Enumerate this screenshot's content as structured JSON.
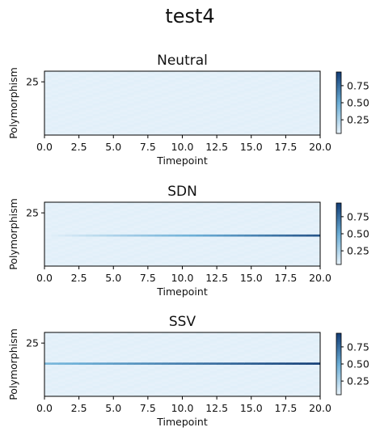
{
  "figure": {
    "suptitle": "test4"
  },
  "colormap": {
    "name": "Blues",
    "low": "#f7fbff",
    "mid": "#6baed6",
    "high": "#08306b"
  },
  "chart_data": [
    {
      "type": "heatmap",
      "title": "Neutral",
      "xlabel": "Timepoint",
      "ylabel": "Polymorphism",
      "xlim": [
        0,
        20
      ],
      "ylim": [
        0,
        30
      ],
      "x_ticks": [
        "0.0",
        "2.5",
        "5.0",
        "7.5",
        "10.0",
        "12.5",
        "15.0",
        "17.5",
        "20.0"
      ],
      "y_ticks": [
        "25"
      ],
      "colorbar": {
        "ticks": [
          "0.25",
          "0.50",
          "0.75"
        ],
        "range": [
          0.05,
          0.95
        ]
      },
      "background_value": 0.07,
      "highlight": null
    },
    {
      "type": "heatmap",
      "title": "SDN",
      "xlabel": "Timepoint",
      "ylabel": "Polymorphism",
      "xlim": [
        0,
        20
      ],
      "ylim": [
        0,
        30
      ],
      "x_ticks": [
        "0.0",
        "2.5",
        "5.0",
        "7.5",
        "10.0",
        "12.5",
        "15.0",
        "17.5",
        "20.0"
      ],
      "y_ticks": [
        "25"
      ],
      "colorbar": {
        "ticks": [
          "0.25",
          "0.50",
          "0.75"
        ],
        "range": [
          0.05,
          0.95
        ]
      },
      "background_value": 0.07,
      "highlight": {
        "row": 14,
        "start_value": 0.07,
        "end_value": 0.85
      }
    },
    {
      "type": "heatmap",
      "title": "SSV",
      "xlabel": "Timepoint",
      "ylabel": "Polymorphism",
      "xlim": [
        0,
        20
      ],
      "ylim": [
        0,
        30
      ],
      "x_ticks": [
        "0.0",
        "2.5",
        "5.0",
        "7.5",
        "10.0",
        "12.5",
        "15.0",
        "17.5",
        "20.0"
      ],
      "y_ticks": [
        "25"
      ],
      "colorbar": {
        "ticks": [
          "0.25",
          "0.50",
          "0.75"
        ],
        "range": [
          0.05,
          0.95
        ]
      },
      "background_value": 0.07,
      "highlight": {
        "row": 15,
        "start_value": 0.45,
        "end_value": 0.95
      }
    }
  ]
}
